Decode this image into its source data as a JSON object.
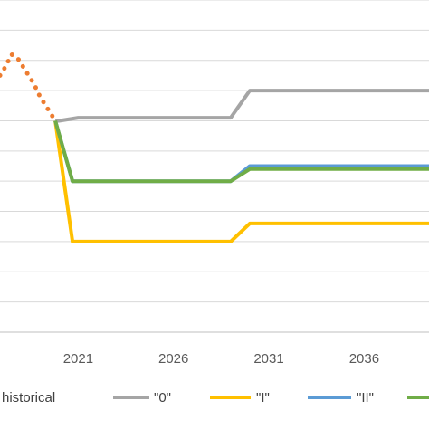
{
  "chart_data": {
    "type": "line",
    "title": "",
    "xlabel": "",
    "ylabel": "",
    "xlim": [
      2016.9,
      2039.4
    ],
    "ylim": [
      0,
      11
    ],
    "x_ticks": [
      2021,
      2026,
      2031,
      2036
    ],
    "x_tick_labels": [
      "2021",
      "2026",
      "2031",
      "2036"
    ],
    "grid": true,
    "legend_position": "bottom",
    "series": [
      {
        "name": "historical",
        "color": "#ED7D31",
        "style": "dotted",
        "x": [
          2016.9,
          2017.2,
          2017.5,
          2017.8,
          2018.1,
          2018.4,
          2018.7,
          2019.0,
          2019.3,
          2019.5,
          2019.8
        ],
        "y": [
          8.5,
          8.8,
          9.2,
          9.1,
          8.8,
          8.5,
          8.2,
          7.8,
          7.5,
          7.3,
          7.0
        ]
      },
      {
        "name": "\"0\"",
        "color": "#A5A5A5",
        "style": "solid",
        "x": [
          2019.8,
          2020.0,
          2021.0,
          2029.0,
          2030.0,
          2039.4
        ],
        "y": [
          7.0,
          7.0,
          7.1,
          7.1,
          8.0,
          8.0
        ]
      },
      {
        "name": "\"I\"",
        "color": "#FFC000",
        "style": "solid",
        "x": [
          2019.8,
          2020.7,
          2029.0,
          2030.0,
          2039.4
        ],
        "y": [
          7.0,
          3.0,
          3.0,
          3.6,
          3.6
        ]
      },
      {
        "name": "\"II\"",
        "color": "#5B9BD5",
        "style": "solid",
        "x": [
          2019.8,
          2020.7,
          2029.0,
          2030.0,
          2039.4
        ],
        "y": [
          7.0,
          5.0,
          5.0,
          5.5,
          5.5
        ]
      },
      {
        "name": "",
        "color": "#70AD47",
        "style": "solid",
        "x": [
          2019.8,
          2020.7,
          2029.0,
          2030.0,
          2039.4
        ],
        "y": [
          7.0,
          5.0,
          5.0,
          5.4,
          5.4
        ]
      }
    ]
  }
}
